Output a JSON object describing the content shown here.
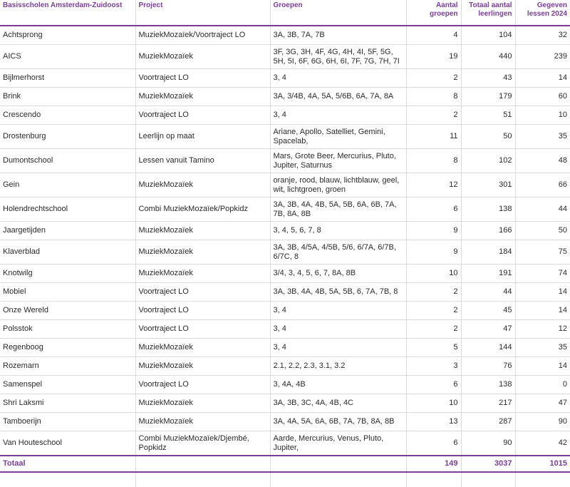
{
  "header": {
    "school": "Basisscholen Amsterdam-Zuidoost",
    "project": "Project",
    "groepen": "Groepen",
    "aantal": "Aantal groepen",
    "totaal": "Totaal aantal leerlingen",
    "lessen": "Gegeven lessen 2024"
  },
  "rows": [
    {
      "school": "Achtsprong",
      "project": "MuziekMozaïek/Voortraject LO",
      "groepen": "3A, 3B, 7A, 7B",
      "aantal": "4",
      "totaal": "104",
      "lessen": "32"
    },
    {
      "school": "AICS",
      "project": "MuziekMozaïek",
      "groepen": "3F, 3G, 3H, 4F, 4G, 4H, 4I, 5F, 5G, 5H, 5I, 6F, 6G, 6H, 6I, 7F, 7G, 7H, 7I",
      "aantal": "19",
      "totaal": "440",
      "lessen": "239"
    },
    {
      "school": "Bijlmerhorst",
      "project": "Voortraject LO",
      "groepen": "3, 4",
      "aantal": "2",
      "totaal": "43",
      "lessen": "14"
    },
    {
      "school": "Brink",
      "project": "MuziekMozaïek",
      "groepen": "3A, 3/4B, 4A, 5A, 5/6B, 6A, 7A, 8A",
      "aantal": "8",
      "totaal": "179",
      "lessen": "60"
    },
    {
      "school": "Crescendo",
      "project": "Voortraject LO",
      "groepen": "3, 4",
      "aantal": "2",
      "totaal": "51",
      "lessen": "10"
    },
    {
      "school": "Drostenburg",
      "project": "Leerlijn op maat",
      "groepen": "Ariane, Apollo, Satelliet, Gemini, Spacelab,",
      "aantal": "11",
      "totaal": "50",
      "lessen": "35"
    },
    {
      "school": "Dumontschool",
      "project": "Lessen vanuit Tamino",
      "groepen": "Mars, Grote Beer, Mercurius, Pluto, Jupiter, Saturnus",
      "aantal": "8",
      "totaal": "102",
      "lessen": "48"
    },
    {
      "school": "Gein",
      "project": "MuziekMozaïek",
      "groepen": "oranje, rood, blauw, lichtblauw, geel, wit, lichtgroen, groen",
      "aantal": "12",
      "totaal": "301",
      "lessen": "66"
    },
    {
      "school": "Holendrechtschool",
      "project": "Combi MuziekMozaïek/Popkidz",
      "groepen": "3A, 3B, 4A, 4B, 5A, 5B, 6A, 6B, 7A, 7B, 8A, 8B",
      "aantal": "6",
      "totaal": "138",
      "lessen": "44"
    },
    {
      "school": "Jaargetijden",
      "project": "MuziekMozaïek",
      "groepen": "3, 4, 5, 6, 7, 8",
      "aantal": "9",
      "totaal": "166",
      "lessen": "50"
    },
    {
      "school": "Klaverblad",
      "project": "MuziekMozaïek",
      "groepen": "3A, 3B, 4/5A, 4/5B, 5/6, 6/7A, 6/7B, 6/7C, 8",
      "aantal": "9",
      "totaal": "184",
      "lessen": "75"
    },
    {
      "school": "Knotwilg",
      "project": "MuziekMozaïek",
      "groepen": "3/4, 3, 4, 5, 6, 7, 8A, 8B",
      "aantal": "10",
      "totaal": "191",
      "lessen": "74"
    },
    {
      "school": "Mobiel",
      "project": "Voortraject LO",
      "groepen": "3A, 3B, 4A, 4B, 5A, 5B, 6, 7A, 7B, 8",
      "aantal": "2",
      "totaal": "44",
      "lessen": "14"
    },
    {
      "school": "Onze Wereld",
      "project": "Voortraject LO",
      "groepen": "3, 4",
      "aantal": "2",
      "totaal": "45",
      "lessen": "14"
    },
    {
      "school": "Polsstok",
      "project": "Voortraject LO",
      "groepen": "3, 4",
      "aantal": "2",
      "totaal": "47",
      "lessen": "12"
    },
    {
      "school": "Regenboog",
      "project": "MuziekMozaïek",
      "groepen": "3, 4",
      "aantal": "5",
      "totaal": "144",
      "lessen": "35"
    },
    {
      "school": "Rozemarn",
      "project": "MuziekMozaïek",
      "groepen": "2.1, 2.2, 2.3, 3.1, 3.2",
      "aantal": "3",
      "totaal": "76",
      "lessen": "14"
    },
    {
      "school": "Samenspel",
      "project": "Voortraject LO",
      "groepen": "3, 4A, 4B",
      "aantal": "6",
      "totaal": "138",
      "lessen": "0"
    },
    {
      "school": "Shri Laksmi",
      "project": "MuziekMozaïek",
      "groepen": "3A, 3B, 3C, 4A, 4B, 4C",
      "aantal": "10",
      "totaal": "217",
      "lessen": "47"
    },
    {
      "school": "Tamboerijn",
      "project": "MuziekMozaïek",
      "groepen": "3A, 4A, 5A, 6A, 6B, 7A, 7B, 8A, 8B",
      "aantal": "13",
      "totaal": "287",
      "lessen": "90"
    },
    {
      "school": "Van Houteschool",
      "project": "Combi MuziekMozaïek/Djembé, Popkidz",
      "groepen": "Aarde, Mercurius, Venus, Pluto, Jupiter,",
      "aantal": "6",
      "totaal": "90",
      "lessen": "42"
    }
  ],
  "footer": {
    "label": "Totaal",
    "aantal": "149",
    "totaal": "3037",
    "lessen": "1015"
  }
}
